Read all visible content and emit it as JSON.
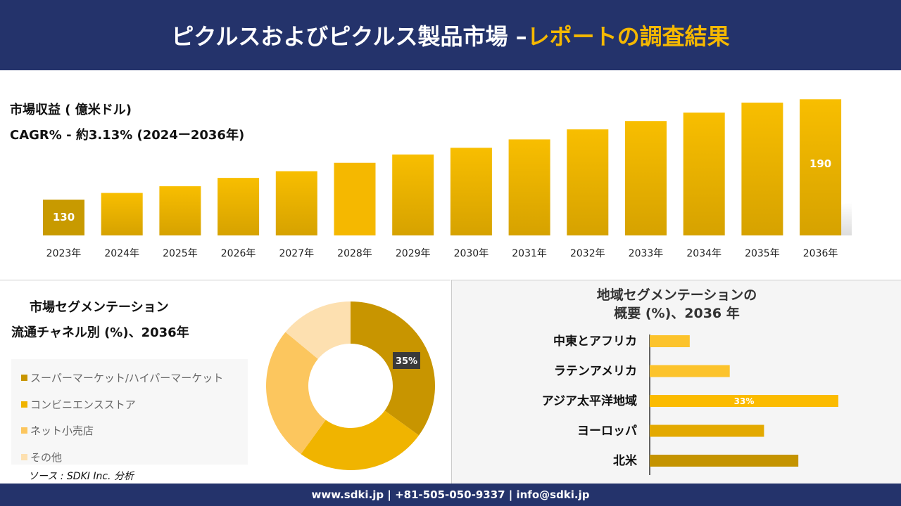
{
  "header": {
    "title_main": "ピクルスおよびピクルス製品市場 –",
    "title_accent": "レポートの調査結果"
  },
  "revenue": {
    "label": "市場収益 ( 億米ドル)",
    "cagr": "CAGR% - 約3.13% (2024ー2036年)"
  },
  "chart_data": [
    {
      "type": "bar",
      "title": "",
      "categories": [
        "2023年",
        "2024年",
        "2025年",
        "2026年",
        "2027年",
        "2028年",
        "2029年",
        "2030年",
        "2031年",
        "2032年",
        "2033年",
        "2034年",
        "2035年",
        "2036年"
      ],
      "values": [
        130,
        134,
        138,
        143,
        147,
        152,
        157,
        161,
        166,
        172,
        177,
        182,
        188,
        190
      ],
      "data_labels": {
        "0": "130",
        "13": "190"
      },
      "colors": [
        "#c89a00",
        "#f5b800",
        "#d9a400"
      ]
    },
    {
      "type": "pie",
      "subtype": "donut",
      "title": "市場セグメンテーション 流通チャネル別 (%)、2036年",
      "title_line1": "市場セグメンテーション",
      "title_line2": "流通チャネル別 (%)、2036年",
      "labels": [
        "スーパーマーケット/ハイパーマーケット",
        "コンビニエンスストア",
        "ネット小売店",
        "その他"
      ],
      "values": [
        35,
        25,
        26,
        14
      ],
      "data_label": "35%",
      "colors": [
        "#c89500",
        "#f0b400",
        "#fcc65e",
        "#fde0b0"
      ]
    },
    {
      "type": "bar",
      "orientation": "horizontal",
      "title_line1": "地域セグメンテーションの",
      "title_line2": "概要 (%)、2036 年",
      "categories": [
        "中東とアフリカ",
        "ラテンアメリカ",
        "アジア太平洋地域",
        "ヨーロッパ",
        "北米"
      ],
      "values": [
        7,
        14,
        33,
        20,
        26
      ],
      "data_label": "33%",
      "colors": [
        "#fcc32c",
        "#fcc32c",
        "#fbbb00",
        "#e3a900",
        "#c49300"
      ]
    }
  ],
  "source": "ソース : SDKI Inc. 分析",
  "footer": "www.sdki.jp | +81-505-050-9337 | info@sdki.jp"
}
